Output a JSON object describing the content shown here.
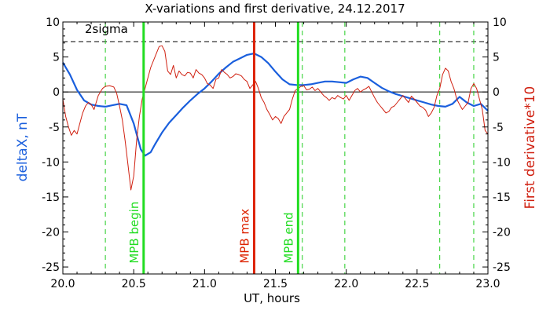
{
  "chart_data": {
    "type": "line",
    "title": "X-variations and first derivative, 24.12.2017",
    "xlabel": "UT, hours",
    "ylabel_left": "deltaX, nT",
    "ylabel_right": "First derivative*10",
    "xlim": [
      20.0,
      23.0
    ],
    "ylim": [
      -26,
      10
    ],
    "x_ticks": [
      "20.0",
      "20.5",
      "21.0",
      "21.5",
      "22.0",
      "22.5",
      "23.0"
    ],
    "y_ticks": [
      "10",
      "5",
      "0",
      "-5",
      "-10",
      "-15",
      "-20",
      "-25"
    ],
    "threshold": {
      "label": "2sigma",
      "value": 7.2
    },
    "colors": {
      "deltaX": "#1a5fdd",
      "derivative": "#d02010",
      "mpb_begin": "#22dd22",
      "mpb_max": "#dd2200",
      "mpb_end": "#22dd22",
      "dashed": "#22cc22"
    },
    "markers": [
      {
        "label": "MPB begin",
        "x": 20.57
      },
      {
        "label": "MPB max",
        "x": 21.35
      },
      {
        "label": "MPB end",
        "x": 21.66
      }
    ],
    "dashed_verticals": [
      20.3,
      21.69,
      21.99,
      22.66,
      22.9
    ],
    "series": [
      {
        "key": "deltaX",
        "x": [
          20.0,
          20.05,
          20.1,
          20.15,
          20.2,
          20.25,
          20.3,
          20.35,
          20.4,
          20.45,
          20.5,
          20.55,
          20.58,
          20.62,
          20.65,
          20.7,
          20.75,
          20.8,
          20.85,
          20.9,
          20.95,
          21.0,
          21.05,
          21.1,
          21.15,
          21.2,
          21.25,
          21.3,
          21.35,
          21.4,
          21.45,
          21.5,
          21.55,
          21.6,
          21.65,
          21.7,
          21.75,
          21.8,
          21.85,
          21.9,
          21.95,
          22.0,
          22.05,
          22.1,
          22.15,
          22.2,
          22.25,
          22.3,
          22.35,
          22.4,
          22.45,
          22.5,
          22.55,
          22.6,
          22.65,
          22.7,
          22.75,
          22.8,
          22.85,
          22.9,
          22.95,
          23.0
        ],
        "values": [
          4.2,
          2.5,
          0.3,
          -1.2,
          -1.8,
          -2.0,
          -2.1,
          -1.9,
          -1.7,
          -1.9,
          -4.5,
          -8.2,
          -9.1,
          -8.6,
          -7.5,
          -5.8,
          -4.4,
          -3.3,
          -2.2,
          -1.2,
          -0.3,
          0.5,
          1.5,
          2.6,
          3.5,
          4.3,
          4.8,
          5.3,
          5.5,
          5.0,
          4.1,
          2.9,
          1.8,
          1.1,
          1.0,
          1.0,
          1.1,
          1.3,
          1.5,
          1.5,
          1.4,
          1.3,
          1.8,
          2.2,
          2.0,
          1.3,
          0.6,
          0.1,
          -0.3,
          -0.6,
          -0.9,
          -1.2,
          -1.5,
          -1.8,
          -2.0,
          -2.1,
          -1.7,
          -0.7,
          -1.5,
          -2.0,
          -1.7,
          -2.7
        ]
      },
      {
        "key": "derivative",
        "x": [
          20.0,
          20.02,
          20.04,
          20.06,
          20.08,
          20.1,
          20.12,
          20.14,
          20.16,
          20.18,
          20.2,
          20.22,
          20.25,
          20.28,
          20.3,
          20.33,
          20.36,
          20.38,
          20.4,
          20.42,
          20.44,
          20.46,
          20.48,
          20.5,
          20.52,
          20.54,
          20.56,
          20.58,
          20.6,
          20.62,
          20.64,
          20.66,
          20.68,
          20.7,
          20.72,
          20.74,
          20.76,
          20.78,
          20.8,
          20.82,
          20.84,
          20.86,
          20.88,
          20.9,
          20.92,
          20.94,
          20.96,
          20.98,
          21.0,
          21.02,
          21.04,
          21.06,
          21.08,
          21.1,
          21.12,
          21.14,
          21.16,
          21.18,
          21.2,
          21.22,
          21.24,
          21.26,
          21.28,
          21.3,
          21.32,
          21.34,
          21.36,
          21.38,
          21.4,
          21.42,
          21.44,
          21.46,
          21.48,
          21.5,
          21.52,
          21.54,
          21.56,
          21.58,
          21.6,
          21.62,
          21.64,
          21.66,
          21.68,
          21.7,
          21.72,
          21.74,
          21.76,
          21.78,
          21.8,
          21.82,
          21.84,
          21.86,
          21.88,
          21.9,
          21.92,
          21.94,
          21.96,
          21.98,
          22.0,
          22.02,
          22.04,
          22.06,
          22.08,
          22.1,
          22.12,
          22.14,
          22.16,
          22.18,
          22.2,
          22.22,
          22.24,
          22.26,
          22.28,
          22.3,
          22.32,
          22.34,
          22.36,
          22.38,
          22.4,
          22.42,
          22.44,
          22.46,
          22.48,
          22.5,
          22.52,
          22.54,
          22.56,
          22.58,
          22.6,
          22.62,
          22.64,
          22.66,
          22.68,
          22.7,
          22.72,
          22.74,
          22.76,
          22.78,
          22.8,
          22.82,
          22.84,
          22.86,
          22.88,
          22.9,
          22.92,
          22.94,
          22.96,
          22.98,
          23.0
        ],
        "values": [
          -1.0,
          -3.5,
          -5.0,
          -6.2,
          -5.5,
          -6.0,
          -4.5,
          -3.0,
          -2.0,
          -1.5,
          -1.8,
          -2.5,
          -0.5,
          0.5,
          0.8,
          0.9,
          0.7,
          -0.2,
          -2.0,
          -4.0,
          -7.0,
          -10.5,
          -14.0,
          -12.0,
          -7.0,
          -3.5,
          -1.0,
          0.5,
          2.0,
          3.5,
          4.5,
          5.5,
          6.5,
          6.6,
          5.8,
          3.0,
          2.5,
          3.8,
          2.0,
          3.0,
          2.5,
          2.3,
          2.8,
          2.7,
          2.0,
          3.2,
          2.7,
          2.5,
          2.0,
          1.2,
          1.0,
          0.5,
          1.8,
          2.0,
          3.2,
          2.8,
          2.5,
          2.0,
          2.2,
          2.6,
          2.5,
          2.3,
          1.8,
          1.5,
          0.5,
          1.0,
          1.5,
          0.5,
          -0.8,
          -1.5,
          -2.5,
          -3.2,
          -4.0,
          -3.5,
          -3.8,
          -4.5,
          -3.5,
          -3.0,
          -2.5,
          -1.0,
          0.2,
          0.5,
          0.8,
          0.9,
          0.3,
          0.4,
          0.7,
          0.2,
          0.5,
          0.0,
          -0.5,
          -0.8,
          -1.2,
          -0.8,
          -1.0,
          -0.5,
          -0.8,
          -1.0,
          -0.5,
          -1.2,
          -0.5,
          0.2,
          0.5,
          0.0,
          0.3,
          0.5,
          0.8,
          0.0,
          -0.8,
          -1.5,
          -2.0,
          -2.5,
          -3.0,
          -2.8,
          -2.2,
          -2.0,
          -1.5,
          -1.0,
          -0.5,
          -1.0,
          -1.5,
          -0.6,
          -1.0,
          -1.5,
          -2.0,
          -2.2,
          -2.6,
          -3.5,
          -3.0,
          -2.2,
          -0.5,
          0.5,
          2.5,
          3.4,
          3.0,
          1.5,
          0.5,
          -1.0,
          -1.8,
          -2.5,
          -2.0,
          -1.5,
          0.5,
          1.2,
          0.5,
          -1.0,
          -2.5,
          -5.5,
          -6.0
        ]
      }
    ]
  }
}
